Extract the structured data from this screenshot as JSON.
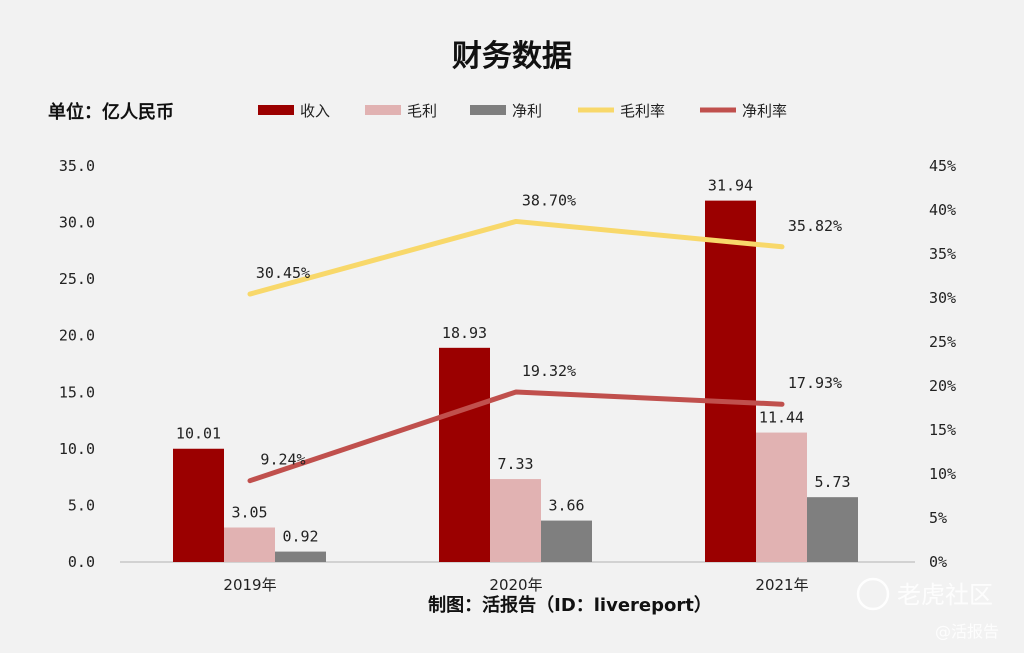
{
  "chart_data": {
    "type": "bar",
    "title": "财务数据",
    "unit_label": "单位：亿人民币",
    "categories": [
      "2019年",
      "2020年",
      "2021年"
    ],
    "series": [
      {
        "name": "收入",
        "kind": "bar",
        "axis": "left",
        "color": "#9b0000",
        "values": [
          10.01,
          18.93,
          31.94
        ],
        "labels": [
          "10.01",
          "18.93",
          "31.94"
        ]
      },
      {
        "name": "毛利",
        "kind": "bar",
        "axis": "left",
        "color": "#e1b2b2",
        "values": [
          3.05,
          7.33,
          11.44
        ],
        "labels": [
          "3.05",
          "7.33",
          "11.44"
        ]
      },
      {
        "name": "净利",
        "kind": "bar",
        "axis": "left",
        "color": "#7f7f7f",
        "values": [
          0.92,
          3.66,
          5.73
        ],
        "labels": [
          "0.92",
          "3.66",
          "5.73"
        ]
      },
      {
        "name": "毛利率",
        "kind": "line",
        "axis": "right",
        "color": "#f8d86a",
        "values": [
          30.45,
          38.7,
          35.82
        ],
        "labels": [
          "30.45%",
          "38.70%",
          "35.82%"
        ]
      },
      {
        "name": "净利率",
        "kind": "line",
        "axis": "right",
        "color": "#c0504d",
        "values": [
          9.24,
          19.32,
          17.93
        ],
        "labels": [
          "9.24%",
          "19.32%",
          "17.93%"
        ]
      }
    ],
    "y_left": {
      "min": 0,
      "max": 35,
      "ticks": [
        "0.0",
        "5.0",
        "10.0",
        "15.0",
        "20.0",
        "25.0",
        "30.0",
        "35.0"
      ],
      "tick_values": [
        0,
        5,
        10,
        15,
        20,
        25,
        30,
        35
      ]
    },
    "y_right": {
      "min": 0,
      "max": 45,
      "ticks": [
        "0%",
        "5%",
        "10%",
        "15%",
        "20%",
        "25%",
        "30%",
        "35%",
        "40%",
        "45%"
      ],
      "tick_values": [
        0,
        5,
        10,
        15,
        20,
        25,
        30,
        35,
        40,
        45
      ]
    },
    "legend_position": "top",
    "grid": false,
    "source": "制图：活报告（ID：livereport）"
  },
  "watermark": {
    "brand": "老虎社区",
    "handle": "@活报告"
  }
}
